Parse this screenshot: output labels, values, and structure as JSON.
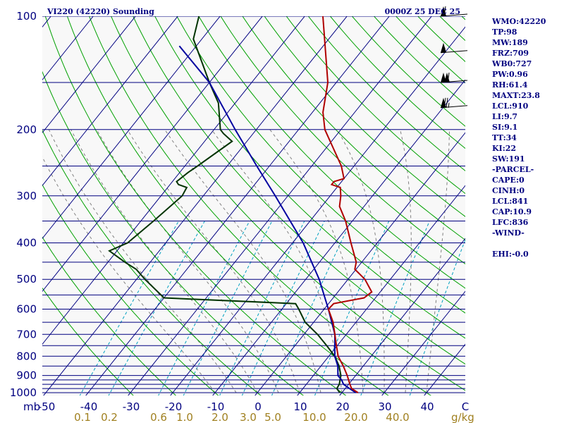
{
  "chart_data": {
    "type": "skew-t log-p sounding",
    "title": "VI220 (42220) Sounding",
    "valid_time": "0000Z 25 DEC 25",
    "pressure_unit": "mb",
    "mixing_ratio_unit": "g/kg",
    "pressure_ticks": [
      "100",
      "200",
      "300",
      "400",
      "500",
      "600",
      "700",
      "800",
      "900",
      "1000"
    ],
    "isobars_mb": [
      100,
      150,
      200,
      250,
      300,
      350,
      400,
      450,
      500,
      550,
      600,
      650,
      700,
      750,
      800,
      850,
      900,
      925,
      950,
      975,
      1000
    ],
    "temperature_ticks": [
      "-50",
      "-40",
      "-30",
      "-20",
      "-10",
      "0",
      "10",
      "20",
      "30",
      "40",
      "C"
    ],
    "mixing_ratio_ticks": [
      "0.1",
      "0.2",
      "0.6",
      "1.0",
      "2.0",
      "3.0",
      "5.0",
      "10.0",
      "20.0",
      "40.0",
      "g/kg"
    ],
    "temperature_profile": [
      {
        "p": 1000,
        "t": 23.8
      },
      {
        "p": 975,
        "t": 21.5
      },
      {
        "p": 950,
        "t": 20.3
      },
      {
        "p": 900,
        "t": 18.0
      },
      {
        "p": 850,
        "t": 15.3
      },
      {
        "p": 800,
        "t": 12.2
      },
      {
        "p": 750,
        "t": 9.8
      },
      {
        "p": 700,
        "t": 7.3
      },
      {
        "p": 650,
        "t": 4.6
      },
      {
        "p": 600,
        "t": 1.0
      },
      {
        "p": 580,
        "t": 1.2
      },
      {
        "p": 560,
        "t": 7.3
      },
      {
        "p": 540,
        "t": 8.0
      },
      {
        "p": 500,
        "t": 4.0
      },
      {
        "p": 470,
        "t": -0.3
      },
      {
        "p": 450,
        "t": -1.3
      },
      {
        "p": 400,
        "t": -6.2
      },
      {
        "p": 350,
        "t": -11.6
      },
      {
        "p": 320,
        "t": -15.8
      },
      {
        "p": 300,
        "t": -17.5
      },
      {
        "p": 285,
        "t": -19.2
      },
      {
        "p": 280,
        "t": -21.8
      },
      {
        "p": 275,
        "t": -21.8
      },
      {
        "p": 270,
        "t": -20.0
      },
      {
        "p": 250,
        "t": -23.0
      },
      {
        "p": 200,
        "t": -33.8
      },
      {
        "p": 180,
        "t": -37.5
      },
      {
        "p": 150,
        "t": -42.0
      },
      {
        "p": 100,
        "t": -55.7
      }
    ],
    "dewpoint_profile": [
      {
        "p": 1000,
        "t": 19.5
      },
      {
        "p": 975,
        "t": 18.0
      },
      {
        "p": 950,
        "t": 17.8
      },
      {
        "p": 900,
        "t": 16.5
      },
      {
        "p": 850,
        "t": 14.3
      },
      {
        "p": 800,
        "t": 11.4
      },
      {
        "p": 750,
        "t": 7.5
      },
      {
        "p": 700,
        "t": 3.2
      },
      {
        "p": 650,
        "t": -2.0
      },
      {
        "p": 600,
        "t": -6.0
      },
      {
        "p": 580,
        "t": -7.8
      },
      {
        "p": 560,
        "t": -40.0
      },
      {
        "p": 500,
        "t": -48.0
      },
      {
        "p": 470,
        "t": -52.0
      },
      {
        "p": 450,
        "t": -56.0
      },
      {
        "p": 420,
        "t": -61.8
      },
      {
        "p": 400,
        "t": -59.0
      },
      {
        "p": 350,
        "t": -57.0
      },
      {
        "p": 300,
        "t": -55.0
      },
      {
        "p": 285,
        "t": -55.5
      },
      {
        "p": 280,
        "t": -58.0
      },
      {
        "p": 275,
        "t": -59.0
      },
      {
        "p": 260,
        "t": -58.0
      },
      {
        "p": 250,
        "t": -57.0
      },
      {
        "p": 215,
        "t": -53.5
      },
      {
        "p": 205,
        "t": -57.0
      },
      {
        "p": 200,
        "t": -58.5
      },
      {
        "p": 170,
        "t": -64.0
      },
      {
        "p": 150,
        "t": -70.0
      },
      {
        "p": 115,
        "t": -82.0
      },
      {
        "p": 100,
        "t": -85.0
      }
    ],
    "parcel_profile": [
      {
        "p": 1000,
        "t": 23.3
      },
      {
        "p": 975,
        "t": 21.0
      },
      {
        "p": 950,
        "t": 18.8
      },
      {
        "p": 925,
        "t": 17.5
      },
      {
        "p": 900,
        "t": 15.8
      },
      {
        "p": 850,
        "t": 14.0
      },
      {
        "p": 800,
        "t": 11.4
      },
      {
        "p": 700,
        "t": 7.3
      },
      {
        "p": 600,
        "t": 1.0
      },
      {
        "p": 500,
        "t": -6.8
      },
      {
        "p": 400,
        "t": -17.5
      },
      {
        "p": 300,
        "t": -33.0
      },
      {
        "p": 250,
        "t": -43.0
      },
      {
        "p": 200,
        "t": -55.0
      },
      {
        "p": 150,
        "t": -70.0
      },
      {
        "p": 120,
        "t": -84.0
      }
    ],
    "indices": [
      "WMO:42220",
      "TP:98",
      "MW:189",
      "FRZ:709",
      "WB0:727",
      "PW:0.96",
      "RH:61.4",
      "MAXT:23.8",
      "LCL:910",
      "LI:9.7",
      "SI:9.1",
      "TT:34",
      "KI:22",
      "SW:191",
      "-PARCEL-",
      "CAPE:0",
      "CINH:0",
      "LCL:841",
      "CAP:10.9",
      "LFC:836",
      "-WIND-",
      "",
      "EHI:-0.0"
    ],
    "wind_barbs": [
      {
        "p": 100,
        "dir": 280,
        "speed_kt": 60
      },
      {
        "p": 125,
        "dir": 280,
        "speed_kt": 55
      },
      {
        "p": 150,
        "dir": 275,
        "speed_kt": 110
      },
      {
        "p": 175,
        "dir": 265,
        "speed_kt": 75
      }
    ],
    "colors": {
      "isobar": "#000080",
      "isotherm": "#000080",
      "dry_adiabat": "#00a000",
      "moist_adiabat": "#808080",
      "mixing_ratio": "#00a0c0",
      "temperature": "#b00000",
      "dewpoint": "#003300",
      "parcel": "#0000a0",
      "mixing_ratio_labels": "#a08020",
      "text": "#000080"
    }
  }
}
